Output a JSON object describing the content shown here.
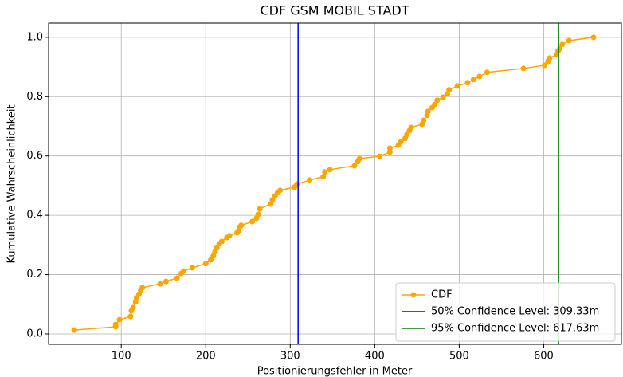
{
  "chart_data": {
    "type": "line",
    "title": "CDF GSM MOBIL STADT",
    "xlabel": "Positionierungsfehler in Meter",
    "ylabel": "Kumulative Wahrscheinlichkeit",
    "x": [
      44.3,
      93.4,
      93.4,
      98,
      111,
      112,
      114,
      117,
      118,
      121,
      123,
      125,
      146,
      153,
      166,
      171,
      174,
      184,
      200,
      206,
      209,
      211,
      213,
      216,
      219,
      225,
      228,
      237,
      239,
      240,
      242,
      255,
      260,
      262,
      264,
      277,
      279,
      282,
      285,
      288,
      305,
      308,
      323,
      339,
      341,
      347,
      376,
      380,
      382,
      406,
      418,
      418,
      428,
      431,
      436,
      438,
      441,
      443,
      456,
      458,
      462,
      463,
      468,
      471,
      474,
      481,
      486,
      488,
      498,
      510,
      517,
      524,
      533,
      576,
      601,
      605,
      607,
      615,
      617,
      619,
      622,
      630,
      659
    ],
    "series": [
      {
        "name": "CDF",
        "color": "#ffa500",
        "values": [
          0.013,
          0.024,
          0.032,
          0.048,
          0.059,
          0.078,
          0.089,
          0.108,
          0.121,
          0.134,
          0.148,
          0.156,
          0.169,
          0.177,
          0.188,
          0.204,
          0.212,
          0.223,
          0.237,
          0.25,
          0.263,
          0.277,
          0.29,
          0.304,
          0.312,
          0.325,
          0.331,
          0.341,
          0.349,
          0.36,
          0.366,
          0.379,
          0.39,
          0.403,
          0.422,
          0.438,
          0.452,
          0.465,
          0.476,
          0.484,
          0.495,
          0.505,
          0.519,
          0.53,
          0.546,
          0.554,
          0.567,
          0.581,
          0.591,
          0.599,
          0.613,
          0.626,
          0.637,
          0.648,
          0.659,
          0.672,
          0.685,
          0.696,
          0.707,
          0.72,
          0.737,
          0.75,
          0.763,
          0.774,
          0.788,
          0.798,
          0.809,
          0.823,
          0.836,
          0.847,
          0.858,
          0.868,
          0.882,
          0.895,
          0.906,
          0.919,
          0.93,
          0.941,
          0.954,
          0.962,
          0.976,
          0.989,
          1.0
        ]
      }
    ],
    "vlines": [
      {
        "name": "50% Confidence Level: 309.33m",
        "color": "#0000ff",
        "x": 309.33
      },
      {
        "name": "95% Confidence Level: 617.63m",
        "color": "#008000",
        "x": 617.63
      }
    ],
    "xlim": [
      14,
      692
    ],
    "ylim": [
      -0.035,
      1.048
    ],
    "xticks": [
      100,
      200,
      300,
      400,
      500,
      600
    ],
    "yticks": [
      {
        "value": 0,
        "label": "0.0"
      },
      0.2,
      0.4,
      0.6,
      0.8,
      {
        "value": 1,
        "label": "1.0"
      }
    ],
    "grid": true,
    "legend": "lower right"
  }
}
